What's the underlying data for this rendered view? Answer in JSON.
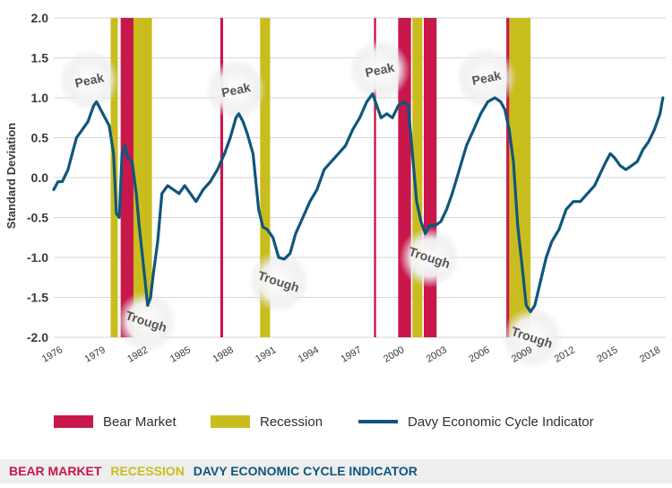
{
  "chart_data": {
    "type": "line",
    "title": "",
    "xlabel": "",
    "ylabel": "Standard Deviation",
    "xlim": [
      1976,
      2019
    ],
    "ylim": [
      -2.0,
      2.0
    ],
    "x_ticks": [
      "1976",
      "1979",
      "1982",
      "1985",
      "1988",
      "1991",
      "1994",
      "1997",
      "2000",
      "2003",
      "2006",
      "2009",
      "2012",
      "2015",
      "2018"
    ],
    "y_ticks": [
      "2.0",
      "1.5",
      "1.0",
      "0.5",
      "0.0",
      "-0.5",
      "-1.0",
      "-1.5",
      "-2.0"
    ],
    "grid": "horizontal",
    "legend_position": "bottom",
    "legend": [
      {
        "label": "Bear Market",
        "type": "bear",
        "color": "#c8174a"
      },
      {
        "label": "Recession",
        "type": "recession",
        "color": "#c9bd1e"
      },
      {
        "label": "Davy Economic Cycle Indicator",
        "type": "line",
        "color": "#0f567c"
      }
    ],
    "recessions": [
      [
        1980.0,
        1980.5
      ],
      [
        1981.5,
        1982.9
      ],
      [
        1990.5,
        1991.2
      ],
      [
        2001.2,
        2001.9
      ],
      [
        2007.9,
        2009.5
      ]
    ],
    "bear_markets": [
      [
        1980.7,
        1981.6
      ],
      [
        1987.7,
        1987.9
      ],
      [
        1998.5,
        1998.65
      ],
      [
        2000.2,
        2001.1
      ],
      [
        2002.0,
        2002.9
      ],
      [
        2007.8,
        2008.0
      ]
    ],
    "annotations": [
      {
        "label": "Peak",
        "x": 1978.5,
        "y": 1.22
      },
      {
        "label": "Trough",
        "x": 1982.5,
        "y": -1.8
      },
      {
        "label": "Peak",
        "x": 1988.8,
        "y": 1.1
      },
      {
        "label": "Trough",
        "x": 1991.8,
        "y": -1.3
      },
      {
        "label": "Peak",
        "x": 1998.9,
        "y": 1.35
      },
      {
        "label": "Trough",
        "x": 2002.4,
        "y": -1.0
      },
      {
        "label": "Peak",
        "x": 2006.4,
        "y": 1.25
      },
      {
        "label": "Trough",
        "x": 2009.6,
        "y": -2.0
      }
    ],
    "series": [
      {
        "name": "Davy Economic Cycle Indicator",
        "x": [
          1976.0,
          1976.3,
          1976.6,
          1977.0,
          1977.3,
          1977.6,
          1978.0,
          1978.4,
          1978.8,
          1979.0,
          1979.3,
          1979.6,
          1979.9,
          1980.2,
          1980.4,
          1980.6,
          1980.8,
          1981.0,
          1981.2,
          1981.5,
          1981.8,
          1982.0,
          1982.3,
          1982.6,
          1982.8,
          1983.0,
          1983.3,
          1983.6,
          1984.0,
          1984.4,
          1984.8,
          1985.2,
          1985.6,
          1986.0,
          1986.5,
          1987.0,
          1987.5,
          1988.0,
          1988.4,
          1988.8,
          1989.0,
          1989.3,
          1989.6,
          1990.0,
          1990.4,
          1990.7,
          1991.0,
          1991.4,
          1991.8,
          1992.2,
          1992.6,
          1993.0,
          1993.5,
          1994.0,
          1994.5,
          1995.0,
          1995.5,
          1996.0,
          1996.5,
          1997.0,
          1997.5,
          1998.0,
          1998.4,
          1998.7,
          1999.0,
          1999.4,
          1999.8,
          2000.2,
          2000.6,
          2000.9,
          2001.2,
          2001.5,
          2001.8,
          2002.1,
          2002.4,
          2002.8,
          2003.2,
          2003.6,
          2004.0,
          2004.5,
          2005.0,
          2005.5,
          2006.0,
          2006.5,
          2007.0,
          2007.4,
          2007.7,
          2008.0,
          2008.3,
          2008.6,
          2008.9,
          2009.2,
          2009.5,
          2009.8,
          2010.2,
          2010.6,
          2011.0,
          2011.5,
          2012.0,
          2012.5,
          2013.0,
          2013.5,
          2014.0,
          2014.4,
          2014.8,
          2015.1,
          2015.4,
          2015.8,
          2016.2,
          2016.6,
          2017.0,
          2017.4,
          2017.8,
          2018.2,
          2018.6,
          2018.8
        ],
        "values": [
          -0.15,
          -0.05,
          -0.05,
          0.1,
          0.3,
          0.5,
          0.6,
          0.7,
          0.9,
          0.95,
          0.85,
          0.75,
          0.65,
          0.3,
          -0.45,
          -0.5,
          0.3,
          0.4,
          0.25,
          0.2,
          -0.2,
          -0.6,
          -1.1,
          -1.6,
          -1.5,
          -1.2,
          -0.8,
          -0.2,
          -0.1,
          -0.15,
          -0.2,
          -0.1,
          -0.2,
          -0.3,
          -0.15,
          -0.05,
          0.1,
          0.3,
          0.5,
          0.75,
          0.8,
          0.7,
          0.55,
          0.3,
          -0.4,
          -0.62,
          -0.65,
          -0.75,
          -1.0,
          -1.02,
          -0.95,
          -0.7,
          -0.5,
          -0.3,
          -0.15,
          0.1,
          0.2,
          0.3,
          0.4,
          0.6,
          0.75,
          0.95,
          1.05,
          0.9,
          0.75,
          0.8,
          0.75,
          0.9,
          0.95,
          0.9,
          0.3,
          -0.3,
          -0.55,
          -0.7,
          -0.6,
          -0.6,
          -0.55,
          -0.4,
          -0.2,
          0.1,
          0.4,
          0.6,
          0.8,
          0.95,
          1.0,
          0.95,
          0.85,
          0.6,
          0.2,
          -0.6,
          -1.1,
          -1.6,
          -1.68,
          -1.6,
          -1.3,
          -1.0,
          -0.8,
          -0.65,
          -0.4,
          -0.3,
          -0.3,
          -0.2,
          -0.1,
          0.05,
          0.2,
          0.3,
          0.25,
          0.15,
          0.1,
          0.15,
          0.2,
          0.35,
          0.45,
          0.6,
          0.8,
          1.0
        ]
      }
    ]
  },
  "footer": {
    "bear_label": "BEAR MARKET",
    "recession_label": "RECESSION",
    "indicator_label": "DAVY ECONOMIC CYCLE INDICATOR"
  }
}
